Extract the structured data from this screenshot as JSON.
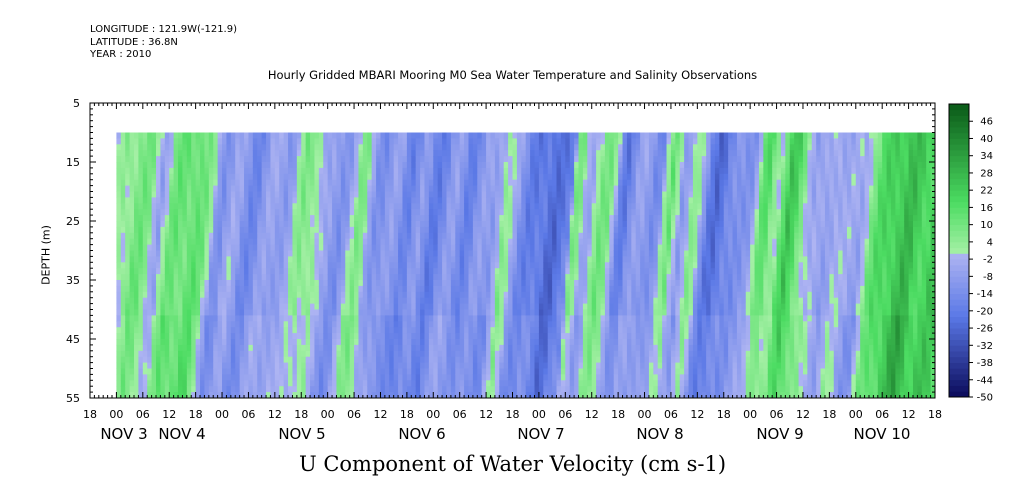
{
  "header": {
    "longitude": "LONGITUDE : 121.9W(-121.9)",
    "latitude": "LATITUDE : 36.8N",
    "year": "YEAR : 2010"
  },
  "chart_data": {
    "type": "heatmap",
    "title": "Hourly Gridded MBARI Mooring M0 Sea Water Temperature and Salinity Observations",
    "xlabel": "U Component of Water Velocity (cm s-1)",
    "ylabel": "DEPTH (m)",
    "y_ticks": [
      5,
      15,
      25,
      35,
      45,
      55
    ],
    "ylim": [
      55,
      5
    ],
    "data_depth_range": [
      10,
      55
    ],
    "x_hour_ticks": [
      "18",
      "00",
      "06",
      "12",
      "18",
      "00",
      "06",
      "12",
      "18",
      "00",
      "06",
      "12",
      "18",
      "00",
      "06",
      "12",
      "18",
      "00",
      "06",
      "12",
      "18",
      "00",
      "06",
      "12",
      "18",
      "00",
      "06",
      "12",
      "18",
      "00",
      "06",
      "12",
      "18"
    ],
    "x_day_labels": [
      "NOV 3",
      "NOV 4",
      "NOV 5",
      "NOV 6",
      "NOV 7",
      "NOV 8",
      "NOV 9",
      "NOV 10"
    ],
    "x_range_hours": [
      "2010-11-02T18:00",
      "2010-11-10T18:00"
    ],
    "data_start": "2010-11-03T00:00",
    "colorbar_labels": [
      46,
      40,
      34,
      28,
      22,
      16,
      10,
      4,
      -2,
      -8,
      -14,
      -20,
      -26,
      -32,
      -38,
      -44,
      -50
    ],
    "colorbar_range": [
      -50,
      52
    ],
    "colors": {
      "positive_light": "#a6f0a6",
      "positive_mid": "#4cdc62",
      "positive_dark": "#0a5a18",
      "negative_light": "#aeb4f2",
      "negative_mid": "#5a78e6",
      "negative_dark": "#0a0a5a"
    },
    "velocity_profile_by_day": [
      {
        "day": "NOV 3",
        "regime": "mixed, positive near 12-18h"
      },
      {
        "day": "NOV 4",
        "regime": "mixed, positive 00-12h"
      },
      {
        "day": "NOV 5",
        "regime": "mostly negative, positive 12-18h"
      },
      {
        "day": "NOV 6",
        "regime": "negative"
      },
      {
        "day": "NOV 7",
        "regime": "negative, strong near 00h Nov 8"
      },
      {
        "day": "NOV 8",
        "regime": "negative, strong near 00-06h Nov 9"
      },
      {
        "day": "NOV 9",
        "regime": "positive 06-18h"
      },
      {
        "day": "NOV 10",
        "regime": "strongly positive"
      }
    ]
  }
}
